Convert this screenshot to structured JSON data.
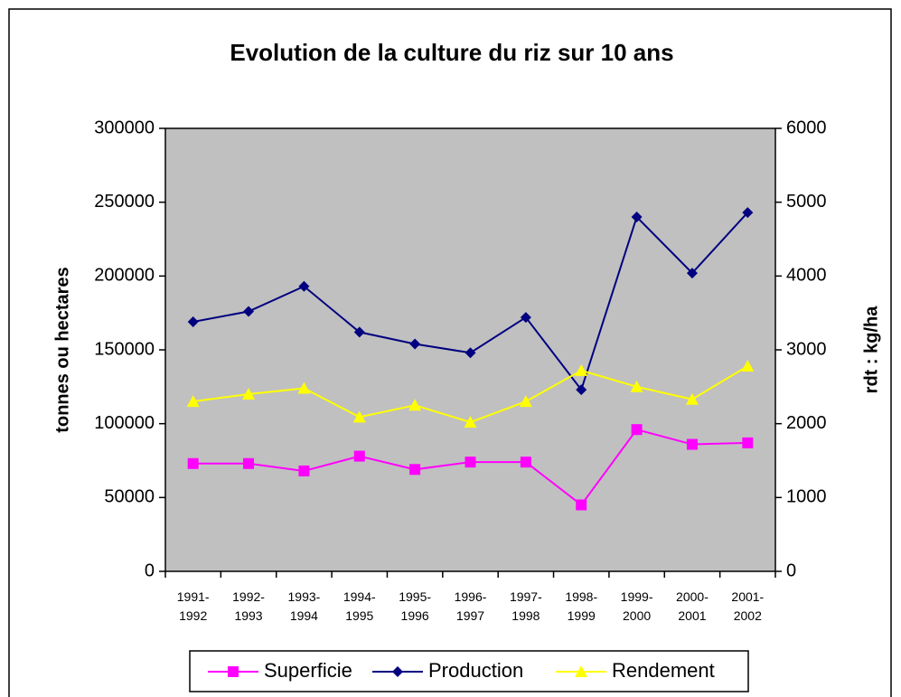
{
  "chart_data": {
    "type": "line",
    "title": "Evolution de la culture du riz sur 10 ans",
    "ylabel": "tonnes ou hectares",
    "y2label": "rdt : kg/ha",
    "categories": [
      "1991-1992",
      "1992-1993",
      "1993-1994",
      "1994-1995",
      "1995-1996",
      "1996-1997",
      "1997-1998",
      "1998-1999",
      "1999-2000",
      "2000-2001",
      "2001-2002"
    ],
    "series": [
      {
        "name": "Superficie",
        "color": "#ff00ff",
        "marker": "square",
        "values": [
          73000,
          73000,
          68000,
          78000,
          69000,
          74000,
          74000,
          45000,
          96000,
          86000,
          87000
        ]
      },
      {
        "name": "Production",
        "color": "#000080",
        "marker": "diamond",
        "values": [
          169000,
          176000,
          193000,
          162000,
          154000,
          148000,
          172000,
          123000,
          240000,
          202000,
          243000
        ]
      },
      {
        "name": "Rendement",
        "color": "#ffff00",
        "marker": "triangle",
        "axis": "y2",
        "values": [
          2300,
          2400,
          2480,
          2090,
          2250,
          2020,
          2300,
          2720,
          2500,
          2330,
          2780
        ]
      }
    ],
    "ylim": [
      0,
      300000
    ],
    "yticks": [
      0,
      50000,
      100000,
      150000,
      200000,
      250000,
      300000
    ],
    "y2lim": [
      0,
      6000
    ],
    "y2ticks": [
      0,
      1000,
      2000,
      3000,
      4000,
      5000,
      6000
    ],
    "legend": "bottom",
    "grid": false,
    "plot_background": "#c0c0c0"
  }
}
